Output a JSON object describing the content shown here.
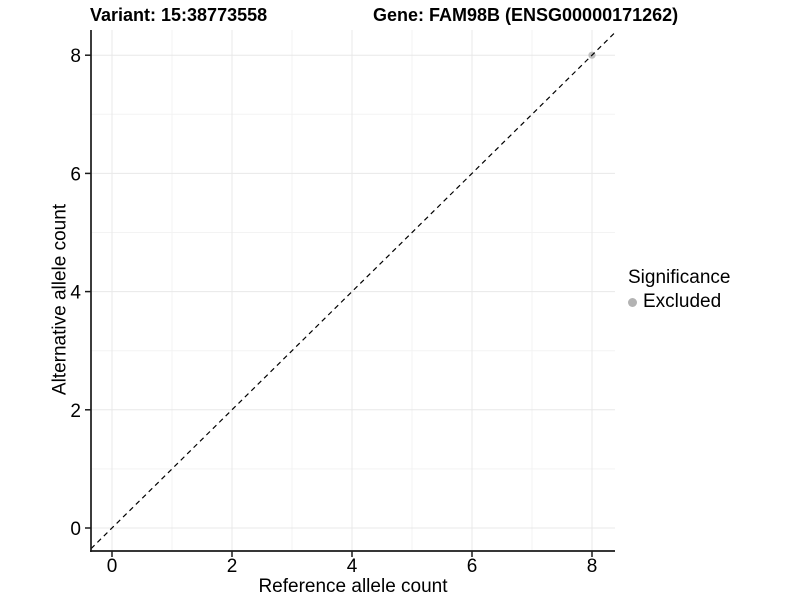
{
  "title": {
    "variant": "Variant: 15:38773558",
    "gene": "Gene: FAM98B (ENSG00000171262)"
  },
  "axes": {
    "x": {
      "label": "Reference allele count",
      "major_ticks": [
        0,
        2,
        4,
        6,
        8
      ],
      "minor_ticks": [
        1,
        3,
        5,
        7
      ],
      "range": [
        -0.35,
        8.38
      ]
    },
    "y": {
      "label": "Alternative allele count",
      "major_ticks": [
        0,
        2,
        4,
        6,
        8
      ],
      "minor_ticks": [
        1,
        3,
        5,
        7
      ],
      "range": [
        -0.39,
        8.43
      ]
    }
  },
  "legend": {
    "title": "Significance",
    "items": [
      {
        "label": "Excluded",
        "color": "#b3b3b3"
      }
    ]
  },
  "colors": {
    "excluded_point": "#b9b9b9",
    "axis_line": "#1a1a1a",
    "tick_text": "#000000",
    "grid_major": "#e8e8e8",
    "grid_minor": "#f3f3f3",
    "reference_line": "#000000"
  },
  "chart_data": {
    "type": "scatter",
    "title": "Variant: 15:38773558 | Gene: FAM98B (ENSG00000171262)",
    "xlabel": "Reference allele count",
    "ylabel": "Alternative allele count",
    "xlim": [
      -0.35,
      8.38
    ],
    "ylim": [
      -0.39,
      8.43
    ],
    "x_ticks": [
      0,
      2,
      4,
      6,
      8
    ],
    "y_ticks": [
      0,
      2,
      4,
      6,
      8
    ],
    "grid": "on",
    "legend_position": "right",
    "series": [
      {
        "name": "Excluded",
        "color": "#b9b9b9",
        "points": [
          [
            8,
            8
          ]
        ]
      }
    ],
    "reference_line": {
      "type": "identity",
      "slope": 1,
      "intercept": 0,
      "style": "dashed",
      "color": "#000000"
    }
  }
}
